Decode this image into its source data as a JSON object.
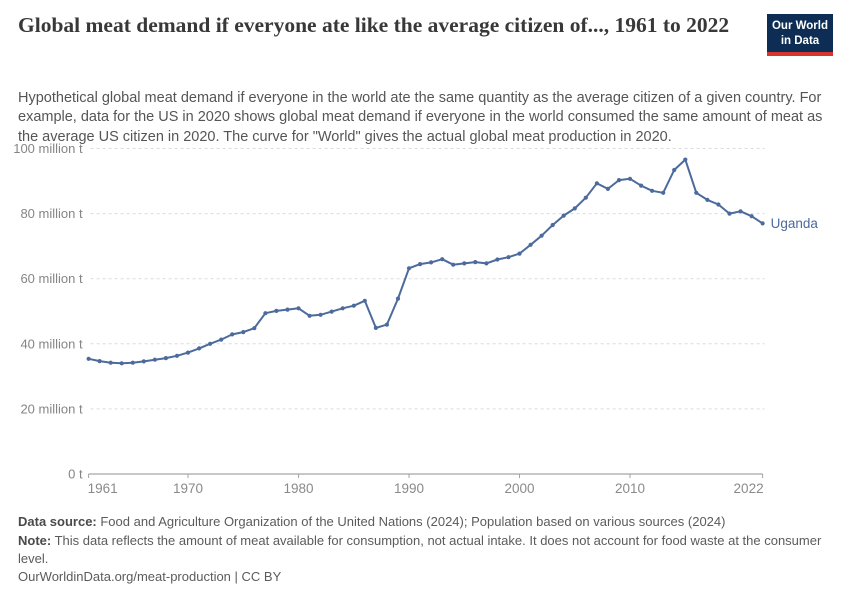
{
  "header": {
    "title": "Global meat demand if everyone ate like the average citizen of..., 1961 to 2022",
    "subtitle": "Hypothetical global meat demand if everyone in the world ate the same quantity as the average citizen of a given country. For example, data for the US in 2020 shows global meat demand if everyone in the world consumed the same amount of meat as the average US citizen in 2020. The curve for \"World\" gives the actual global meat production in 2020."
  },
  "logo": {
    "line1": "Our World",
    "line2": "in Data",
    "bg_color": "#0d2d55",
    "accent_color": "#d8352f"
  },
  "chart_data": {
    "type": "line",
    "title": "Global meat demand if everyone ate like the average citizen of..., 1961 to 2022",
    "unit": "million tonnes",
    "xlabel": "",
    "ylabel": "",
    "xlim": [
      1961,
      2022
    ],
    "ylim": [
      0,
      100
    ],
    "grid": "horizontal-dashed",
    "legend_position": "end-of-line-label",
    "x_ticks": [
      1961,
      1970,
      1980,
      1990,
      2000,
      2010,
      2022
    ],
    "y_ticks": [
      {
        "value": 0,
        "label": "0 t"
      },
      {
        "value": 20,
        "label": "20 million t"
      },
      {
        "value": 40,
        "label": "40 million t"
      },
      {
        "value": 60,
        "label": "60 million t"
      },
      {
        "value": 80,
        "label": "80 million t"
      },
      {
        "value": 100,
        "label": "100 million t"
      }
    ],
    "series": [
      {
        "name": "Uganda",
        "color": "#4c6a9c",
        "x": [
          1961,
          1962,
          1963,
          1964,
          1965,
          1966,
          1967,
          1968,
          1969,
          1970,
          1971,
          1972,
          1973,
          1974,
          1975,
          1976,
          1977,
          1978,
          1979,
          1980,
          1981,
          1982,
          1983,
          1984,
          1985,
          1986,
          1987,
          1988,
          1989,
          1990,
          1991,
          1992,
          1993,
          1994,
          1995,
          1996,
          1997,
          1998,
          1999,
          2000,
          2001,
          2002,
          2003,
          2004,
          2005,
          2006,
          2007,
          2008,
          2009,
          2010,
          2011,
          2012,
          2013,
          2014,
          2015,
          2016,
          2017,
          2018,
          2019,
          2020,
          2021,
          2022
        ],
        "values": [
          35.4,
          34.7,
          34.2,
          34.0,
          34.2,
          34.6,
          35.1,
          35.6,
          36.3,
          37.3,
          38.6,
          40.0,
          41.3,
          42.9,
          43.6,
          44.8,
          49.4,
          50.1,
          50.5,
          50.9,
          48.6,
          48.9,
          49.9,
          50.9,
          51.7,
          53.2,
          44.9,
          45.9,
          53.9,
          63.2,
          64.5,
          65.0,
          66.0,
          64.3,
          64.7,
          65.1,
          64.7,
          65.9,
          66.6,
          67.7,
          70.4,
          73.2,
          76.5,
          79.4,
          81.6,
          84.9,
          89.3,
          87.6,
          90.3,
          90.7,
          88.6,
          87.0,
          86.4,
          93.4,
          96.6,
          86.4,
          84.2,
          82.8,
          80.0,
          80.7,
          79.2,
          77.0
        ]
      }
    ]
  },
  "footer": {
    "data_source_label": "Data source:",
    "data_source_text": " Food and Agriculture Organization of the United Nations (2024); Population based on various sources (2024)",
    "note_label": "Note:",
    "note_text": " This data reflects the amount of meat available for consumption, not actual intake. It does not account for food waste at the consumer level.",
    "citation": "OurWorldinData.org/meat-production | CC BY"
  }
}
